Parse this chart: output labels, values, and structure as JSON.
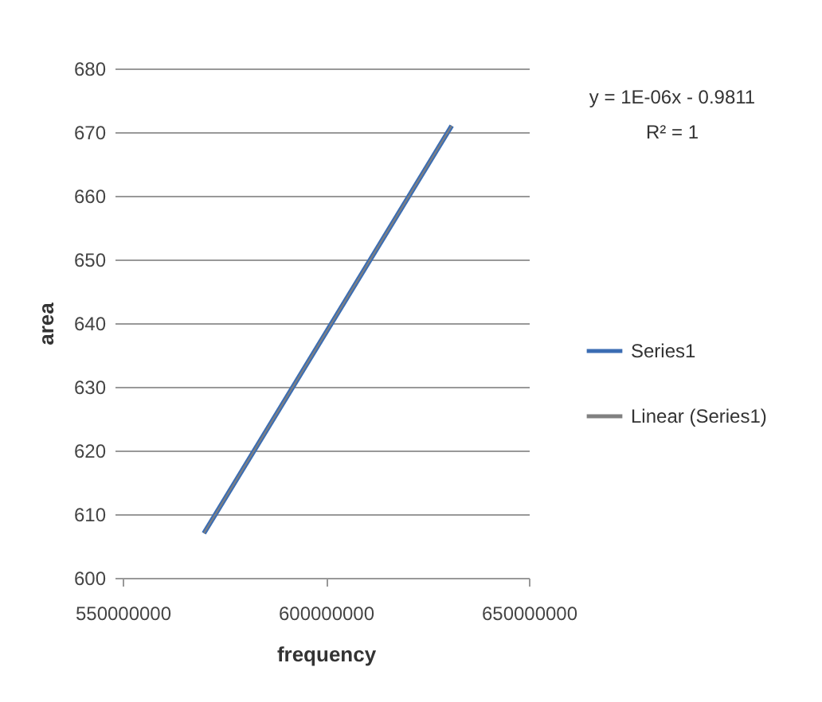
{
  "chart_data": {
    "type": "line",
    "xlabel": "frequency",
    "ylabel": "area",
    "annotations": [
      "y = 1E-06x - 0.9811",
      "R² = 1"
    ],
    "x": [
      570000000,
      631000000
    ],
    "series": [
      {
        "name": "Series1",
        "color": "#3b6db3",
        "values": [
          607,
          671
        ]
      },
      {
        "name": "Linear (Series1)",
        "type": "line",
        "color": "#808080",
        "values": [
          607,
          671
        ]
      }
    ],
    "xlim": [
      550000000,
      650000000
    ],
    "xticks": [
      550000000,
      600000000,
      650000000
    ],
    "ylim": [
      600,
      680
    ],
    "yticks": [
      600,
      610,
      620,
      630,
      640,
      650,
      660,
      670,
      680
    ],
    "grid": "y",
    "legend": "right",
    "marker": "none",
    "line_style": "solid"
  }
}
